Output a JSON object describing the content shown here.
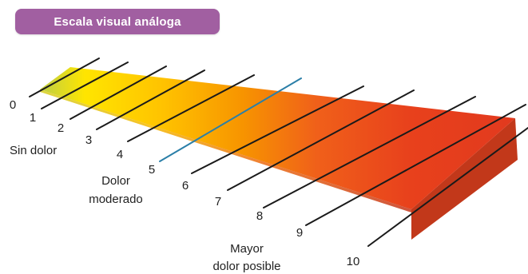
{
  "title": "Escala visual análoga",
  "scale": {
    "ticks": [
      {
        "label": "0",
        "tick_color": "#1a1a1a"
      },
      {
        "label": "1",
        "tick_color": "#1a1a1a"
      },
      {
        "label": "2",
        "tick_color": "#1a1a1a"
      },
      {
        "label": "3",
        "tick_color": "#1a1a1a"
      },
      {
        "label": "4",
        "tick_color": "#1a1a1a"
      },
      {
        "label": "5",
        "tick_color": "#2b7fa8"
      },
      {
        "label": "6",
        "tick_color": "#1a1a1a"
      },
      {
        "label": "7",
        "tick_color": "#1a1a1a"
      },
      {
        "label": "8",
        "tick_color": "#1a1a1a"
      },
      {
        "label": "9",
        "tick_color": "#1a1a1a"
      },
      {
        "label": "10",
        "tick_color": "#1a1a1a"
      }
    ],
    "gradient_colors": [
      "#c8d23a",
      "#ffe500",
      "#ffc200",
      "#f79400",
      "#f0601a",
      "#e8411c",
      "#e23a1e"
    ],
    "side_color": "#c2381a"
  },
  "annotations": {
    "no_pain": "Sin dolor",
    "moderate_line1": "Dolor",
    "moderate_line2": "moderado",
    "max_line1": "Mayor",
    "max_line2": "dolor posible"
  },
  "colors": {
    "title_bg": "#a15fa1",
    "title_text": "#ffffff"
  }
}
